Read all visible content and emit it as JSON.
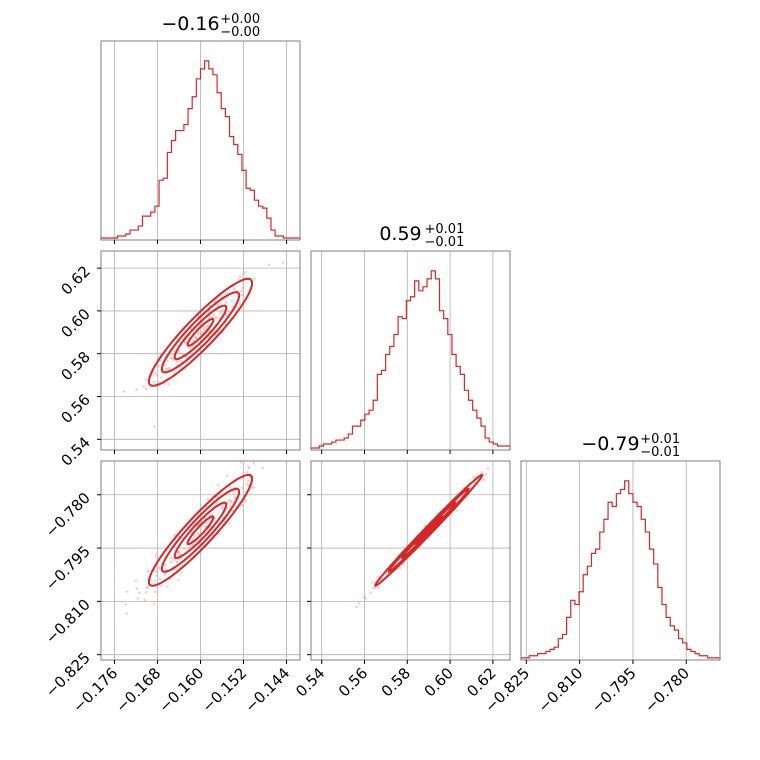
{
  "chart_data": {
    "type": "corner",
    "color": "#d62728",
    "grid": true,
    "parameters": [
      {
        "median": -0.16,
        "plus": 0.0,
        "minus": 0.0,
        "title_main": "−0.16",
        "title_sup": "+0.00",
        "title_sub": "−0.00",
        "range": [
          -0.1785,
          -0.1415
        ],
        "ticks": [
          -0.176,
          -0.168,
          -0.16,
          -0.152,
          -0.144
        ],
        "tick_labels": [
          "−0.176",
          "−0.168",
          "−0.160",
          "−0.152",
          "−0.144"
        ]
      },
      {
        "median": 0.59,
        "plus": 0.01,
        "minus": 0.01,
        "title_main": "0.59",
        "title_sup": "+0.01",
        "title_sub": "−0.01",
        "range": [
          0.535,
          0.628
        ],
        "ticks": [
          0.54,
          0.56,
          0.58,
          0.6,
          0.62
        ],
        "tick_labels": [
          "0.54",
          "0.56",
          "0.58",
          "0.60",
          "0.62"
        ]
      },
      {
        "median": -0.79,
        "plus": 0.01,
        "minus": 0.01,
        "title_main": "−0.79",
        "title_sup": "+0.01",
        "title_sub": "−0.01",
        "range": [
          -0.8265,
          -0.7705
        ],
        "ticks": [
          -0.825,
          -0.81,
          -0.795,
          -0.78
        ],
        "tick_labels": [
          "−0.825",
          "−0.810",
          "−0.795",
          "−0.780"
        ]
      }
    ],
    "histograms": [
      {
        "parameter": 0,
        "counts": [
          1,
          1,
          1,
          1,
          2,
          2,
          3,
          5,
          5,
          7,
          12,
          12,
          14,
          17,
          30,
          31,
          44,
          50,
          55,
          55,
          58,
          66,
          72,
          81,
          86,
          90,
          86,
          83,
          74,
          66,
          62,
          52,
          48,
          43,
          35,
          26,
          25,
          20,
          17,
          16,
          11,
          5,
          2,
          2,
          1,
          1,
          1,
          1
        ]
      },
      {
        "parameter": 1,
        "counts": [
          1,
          1,
          2,
          3,
          3,
          4,
          5,
          5,
          6,
          8,
          12,
          12,
          15,
          18,
          20,
          25,
          38,
          40,
          48,
          52,
          58,
          67,
          66,
          75,
          77,
          85,
          80,
          82,
          86,
          90,
          86,
          70,
          66,
          58,
          48,
          42,
          38,
          30,
          25,
          20,
          16,
          12,
          6,
          4,
          3,
          2,
          2,
          2
        ]
      },
      {
        "parameter": 2,
        "counts": [
          1,
          1,
          2,
          2,
          3,
          3,
          4,
          5,
          6,
          10,
          12,
          20,
          28,
          26,
          32,
          40,
          44,
          50,
          52,
          60,
          66,
          74,
          72,
          78,
          80,
          84,
          78,
          74,
          72,
          66,
          60,
          52,
          45,
          34,
          26,
          20,
          16,
          14,
          10,
          8,
          5,
          4,
          3,
          2,
          2,
          1,
          1,
          1
        ]
      }
    ],
    "pairs": [
      {
        "x_parameter": 0,
        "y_parameter": 1
      },
      {
        "x_parameter": 0,
        "y_parameter": 2
      },
      {
        "x_parameter": 1,
        "y_parameter": 2
      }
    ]
  }
}
